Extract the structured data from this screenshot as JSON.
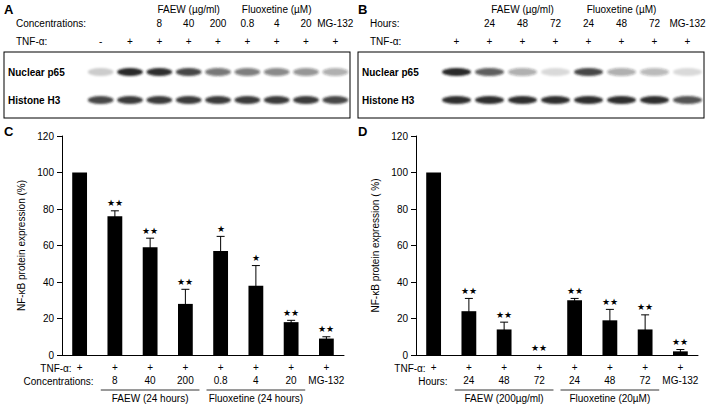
{
  "blots": [
    {
      "panel": "A",
      "header_label": "Concentrations:",
      "treatment_label": "TNF-α:",
      "group": [
        null,
        null,
        "FAEW (µg/ml)",
        "FAEW (µg/ml)",
        "FAEW (µg/ml)",
        "Fluoxetine (µM)",
        "Fluoxetine (µM)",
        "Fluoxetine (µM)",
        null
      ],
      "level": [
        null,
        null,
        "8",
        "40",
        "200",
        "0.8",
        "4",
        "20",
        "MG-132"
      ],
      "treatment": [
        "-",
        "+",
        "+",
        "+",
        "+",
        "+",
        "+",
        "+",
        "+"
      ],
      "rows": [
        {
          "name": "Nuclear p65",
          "intensity": [
            0.2,
            0.95,
            0.9,
            0.8,
            0.6,
            0.55,
            0.5,
            0.45,
            0.35
          ]
        },
        {
          "name": "Histone H3",
          "intensity": [
            0.8,
            0.85,
            0.85,
            0.85,
            0.85,
            0.85,
            0.85,
            0.85,
            0.8
          ]
        }
      ]
    },
    {
      "panel": "B",
      "header_label": "Hours:",
      "treatment_label": "TNF-α:",
      "group": [
        null,
        "FAEW (µg/ml)",
        "FAEW (µg/ml)",
        "FAEW (µg/ml)",
        "Fluoxetine (µM)",
        "Fluoxetine (µM)",
        "Fluoxetine (µM)",
        null
      ],
      "level": [
        null,
        "24",
        "48",
        "72",
        "24",
        "48",
        "72",
        "MG-132"
      ],
      "treatment": [
        "+",
        "+",
        "+",
        "+",
        "+",
        "+",
        "+",
        "+"
      ],
      "rows": [
        {
          "name": "Nuclear p65",
          "intensity": [
            0.95,
            0.7,
            0.35,
            0.15,
            0.8,
            0.35,
            0.3,
            0.15
          ]
        },
        {
          "name": "Histone H3",
          "intensity": [
            0.9,
            0.9,
            0.9,
            0.9,
            0.9,
            0.9,
            0.9,
            0.75
          ]
        }
      ]
    }
  ],
  "chart_data": [
    {
      "panel": "C",
      "type": "bar",
      "categories": [
        null,
        "8",
        "40",
        "200",
        "0.8",
        "4",
        "20",
        "MG-132"
      ],
      "category_label": "Concentrations:",
      "treatment": [
        "+",
        "+",
        "+",
        "+",
        "+",
        "+",
        "+",
        "+"
      ],
      "treatment_label": "TNF-α:",
      "group": [
        null,
        "FAEW (24 hours)",
        "FAEW (24 hours)",
        "FAEW (24 hours)",
        "Fluoxetine (24 hours)",
        "Fluoxetine (24 hours)",
        "Fluoxetine (24 hours)",
        null
      ],
      "values": [
        100,
        76,
        59,
        28,
        57,
        38,
        18,
        9
      ],
      "errors": [
        0,
        3,
        5,
        8,
        8,
        11,
        1,
        1
      ],
      "significance": [
        null,
        "★★",
        "★★",
        "★★",
        "★",
        "★",
        "★★",
        "★★"
      ],
      "color": "#000000",
      "ylabel": "NF-κB protein expression (%)",
      "ylim": [
        0,
        120
      ],
      "yticks": [
        0,
        20,
        40,
        60,
        80,
        100,
        120
      ],
      "grid": false
    },
    {
      "panel": "D",
      "type": "bar",
      "categories": [
        null,
        "24",
        "48",
        "72",
        "24",
        "48",
        "72",
        "MG-132"
      ],
      "category_label": "Hours:",
      "treatment": [
        "+",
        "+",
        "+",
        "+",
        "+",
        "+",
        "+",
        "+"
      ],
      "treatment_label": "TNF-α:",
      "group": [
        null,
        "FAEW (200µg/ml)",
        "FAEW (200µg/ml)",
        "FAEW (200µg/ml)",
        "Fluoxetine (20µM)",
        "Fluoxetine (20µM)",
        "Fluoxetine (20µM)",
        null
      ],
      "values": [
        100,
        24,
        14,
        0,
        30,
        19,
        14,
        2
      ],
      "errors": [
        0,
        7,
        4,
        0,
        1,
        6,
        8,
        1
      ],
      "significance": [
        null,
        "★★",
        "★★",
        "★★",
        "★★",
        "★★",
        "★★",
        "★★"
      ],
      "color": "#000000",
      "ylabel": "NF-κB protein expression ( %)",
      "ylim": [
        0,
        120
      ],
      "yticks": [
        0,
        20,
        40,
        60,
        80,
        100,
        120
      ],
      "grid": false
    }
  ]
}
